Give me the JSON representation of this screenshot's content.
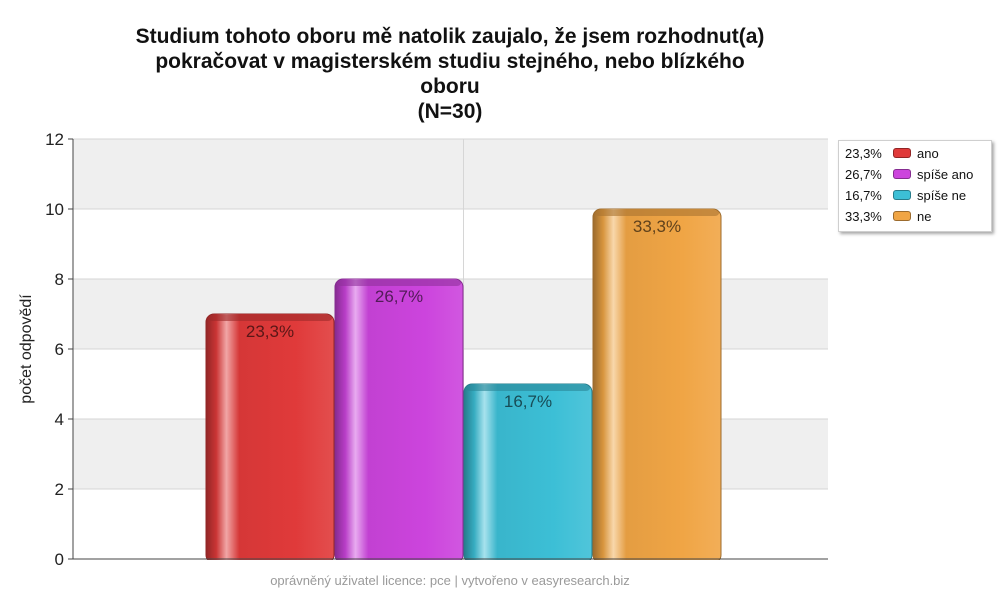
{
  "title_lines": [
    "Studium tohoto oboru mě natolik zaujalo, že jsem rozhodnut(a)",
    "pokračovat v magisterském studiu stejného, nebo blízkého",
    "oboru",
    "(N=30)"
  ],
  "footer": "oprávněný uživatel licence: pce | vytvořeno v easyresearch.biz",
  "chart_data": {
    "type": "bar",
    "title": "Studium tohoto oboru mě natolik zaujalo, že jsem rozhodnut(a) pokračovat v magisterském studiu stejného, nebo blízkého oboru (N=30)",
    "xlabel": "",
    "ylabel": "počet odpovědí",
    "ylim": [
      0,
      12
    ],
    "yticks": [
      0,
      2,
      4,
      6,
      8,
      10,
      12
    ],
    "grid": true,
    "legend_position": "right",
    "series": [
      {
        "name": "ano",
        "value": 7,
        "label": "23,3%",
        "color": "#e03a3a"
      },
      {
        "name": "spíše ano",
        "value": 8,
        "label": "26,7%",
        "color": "#cc44dd"
      },
      {
        "name": "spíše ne",
        "value": 5,
        "label": "16,7%",
        "color": "#3cbfd6"
      },
      {
        "name": "ne",
        "value": 10,
        "label": "33,3%",
        "color": "#f0a545"
      }
    ]
  }
}
